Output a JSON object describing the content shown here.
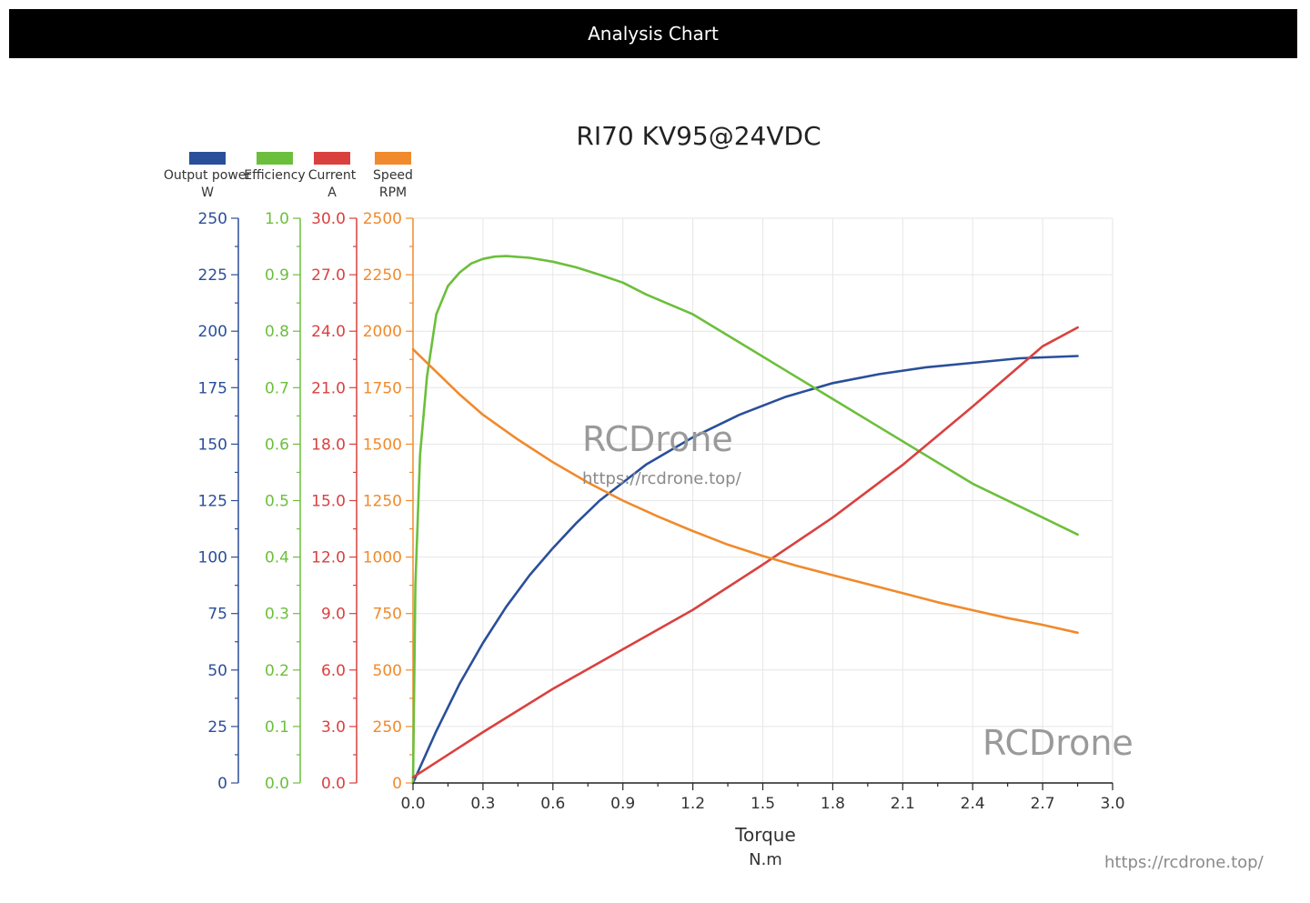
{
  "header": {
    "title": "Analysis Chart"
  },
  "watermarks": {
    "center_logo": "RCDrone",
    "center_url": "https://rcdrone.top/",
    "corner_logo": "RCDrone",
    "corner_url": "https://rcdrone.top/"
  },
  "chart_data": {
    "type": "line",
    "title": "RI70 KV95@24VDC",
    "xlabel": "Torque",
    "xunit": "N.m",
    "xlim": [
      0,
      3.0
    ],
    "xticks": [
      "0.0",
      "0.3",
      "0.6",
      "0.9",
      "1.2",
      "1.5",
      "1.8",
      "2.1",
      "2.4",
      "2.7",
      "3.0"
    ],
    "grid": true,
    "legend": "top-left",
    "axes": [
      {
        "key": "power",
        "name": "Output power",
        "unit": "W",
        "color": "#2a4f9a",
        "ylim": [
          0,
          250
        ],
        "ticks": [
          "0",
          "25",
          "50",
          "75",
          "100",
          "125",
          "150",
          "175",
          "200",
          "225",
          "250"
        ]
      },
      {
        "key": "efficiency",
        "name": "Efficiency",
        "unit": "",
        "color": "#6cbf3c",
        "ylim": [
          0,
          1.0
        ],
        "ticks": [
          "0.0",
          "0.1",
          "0.2",
          "0.3",
          "0.4",
          "0.5",
          "0.6",
          "0.7",
          "0.8",
          "0.9",
          "1.0"
        ]
      },
      {
        "key": "current",
        "name": "Current",
        "unit": "A",
        "color": "#d9413f",
        "ylim": [
          0,
          30
        ],
        "ticks": [
          "0.0",
          "3.0",
          "6.0",
          "9.0",
          "12.0",
          "15.0",
          "18.0",
          "21.0",
          "24.0",
          "27.0",
          "30.0"
        ]
      },
      {
        "key": "speed",
        "name": "Speed",
        "unit": "RPM",
        "color": "#f08a2c",
        "ylim": [
          0,
          2500
        ],
        "ticks": [
          "0",
          "250",
          "500",
          "750",
          "1000",
          "1250",
          "1500",
          "1750",
          "2000",
          "2250",
          "2500"
        ]
      }
    ],
    "series": [
      {
        "axis": "power",
        "color": "#2a4f9a",
        "points": [
          [
            0,
            0
          ],
          [
            0.1,
            23
          ],
          [
            0.2,
            44
          ],
          [
            0.3,
            62
          ],
          [
            0.4,
            78
          ],
          [
            0.5,
            92
          ],
          [
            0.6,
            104
          ],
          [
            0.7,
            115
          ],
          [
            0.8,
            125
          ],
          [
            0.9,
            133
          ],
          [
            1.0,
            141
          ],
          [
            1.2,
            153
          ],
          [
            1.4,
            163
          ],
          [
            1.6,
            171
          ],
          [
            1.8,
            177
          ],
          [
            2.0,
            181
          ],
          [
            2.2,
            184
          ],
          [
            2.4,
            186
          ],
          [
            2.6,
            188
          ],
          [
            2.85,
            189
          ]
        ]
      },
      {
        "axis": "efficiency",
        "color": "#6cbf3c",
        "points": [
          [
            0,
            0
          ],
          [
            0.01,
            0.35
          ],
          [
            0.03,
            0.58
          ],
          [
            0.06,
            0.72
          ],
          [
            0.1,
            0.83
          ],
          [
            0.15,
            0.88
          ],
          [
            0.2,
            0.904
          ],
          [
            0.25,
            0.92
          ],
          [
            0.3,
            0.928
          ],
          [
            0.35,
            0.932
          ],
          [
            0.4,
            0.933
          ],
          [
            0.5,
            0.93
          ],
          [
            0.6,
            0.923
          ],
          [
            0.7,
            0.913
          ],
          [
            0.8,
            0.9
          ],
          [
            0.9,
            0.886
          ],
          [
            1.0,
            0.865
          ],
          [
            1.2,
            0.83
          ],
          [
            1.4,
            0.78
          ],
          [
            1.6,
            0.73
          ],
          [
            1.8,
            0.68
          ],
          [
            2.0,
            0.63
          ],
          [
            2.2,
            0.58
          ],
          [
            2.4,
            0.53
          ],
          [
            2.6,
            0.49
          ],
          [
            2.85,
            0.44
          ]
        ]
      },
      {
        "axis": "current",
        "color": "#d9413f",
        "points": [
          [
            0,
            0.3
          ],
          [
            0.3,
            2.7
          ],
          [
            0.6,
            5.0
          ],
          [
            0.9,
            7.1
          ],
          [
            1.2,
            9.2
          ],
          [
            1.5,
            11.6
          ],
          [
            1.8,
            14.1
          ],
          [
            2.1,
            16.9
          ],
          [
            2.4,
            20.0
          ],
          [
            2.7,
            23.2
          ],
          [
            2.85,
            24.2
          ]
        ]
      },
      {
        "axis": "speed",
        "color": "#f08a2c",
        "points": [
          [
            0,
            1920
          ],
          [
            0.1,
            1820
          ],
          [
            0.2,
            1720
          ],
          [
            0.3,
            1630
          ],
          [
            0.45,
            1520
          ],
          [
            0.6,
            1420
          ],
          [
            0.75,
            1330
          ],
          [
            0.9,
            1250
          ],
          [
            1.05,
            1180
          ],
          [
            1.2,
            1115
          ],
          [
            1.35,
            1055
          ],
          [
            1.5,
            1005
          ],
          [
            1.65,
            960
          ],
          [
            1.8,
            920
          ],
          [
            1.95,
            880
          ],
          [
            2.1,
            840
          ],
          [
            2.25,
            800
          ],
          [
            2.4,
            765
          ],
          [
            2.55,
            730
          ],
          [
            2.7,
            700
          ],
          [
            2.85,
            665
          ]
        ]
      }
    ]
  }
}
